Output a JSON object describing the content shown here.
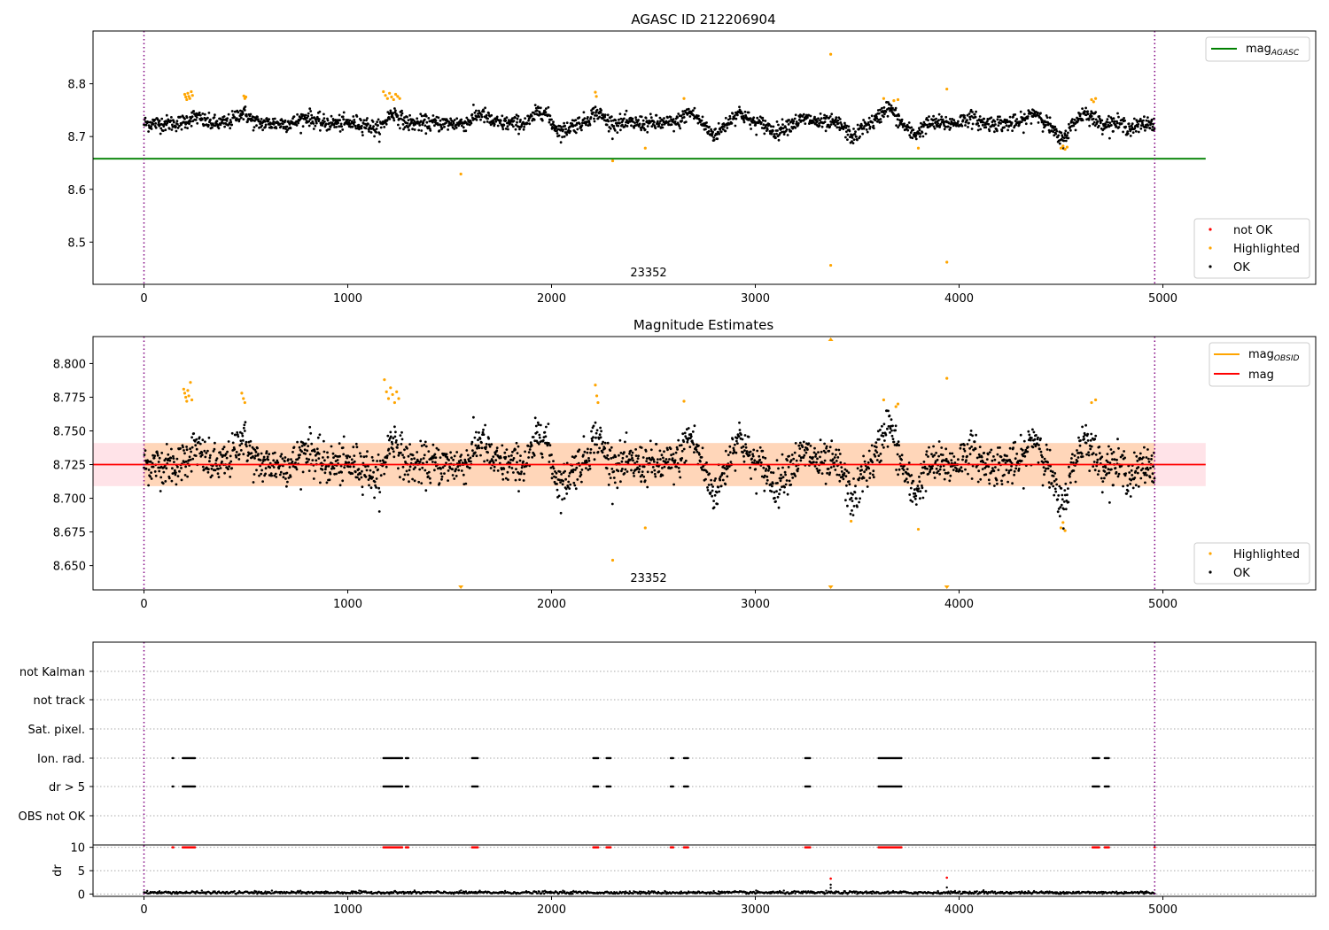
{
  "chart_data": [
    {
      "type": "scatter",
      "title": "AGASC ID 212206904",
      "xlim": [
        -250,
        5750
      ],
      "ylim": [
        8.42,
        8.9
      ],
      "xticks": [
        0,
        1000,
        2000,
        3000,
        4000,
        5000
      ],
      "yticks": [
        8.5,
        8.6,
        8.7,
        8.8
      ],
      "obsid_label": "23352",
      "obsid_label_x": 2480,
      "vlines": [
        0,
        4960
      ],
      "mag_agasc": 8.658,
      "mag_agasc_xrange": [
        -250,
        5210
      ],
      "legend_top": {
        "position": "top-right",
        "entries": [
          {
            "name": "mag",
            "sub": "AGASC",
            "color": "#008000"
          }
        ]
      },
      "legend_bottom": {
        "position": "bottom-right",
        "entries": [
          {
            "name": "not OK",
            "color": "#ff0000"
          },
          {
            "name": "Highlighted",
            "color": "#ffa500"
          },
          {
            "name": "OK",
            "color": "#000000"
          }
        ]
      },
      "highlighted_points": [
        [
          200,
          8.78
        ],
        [
          205,
          8.775
        ],
        [
          210,
          8.77
        ],
        [
          215,
          8.782
        ],
        [
          220,
          8.776
        ],
        [
          225,
          8.772
        ],
        [
          232,
          8.785
        ],
        [
          238,
          8.778
        ],
        [
          490,
          8.777
        ],
        [
          495,
          8.772
        ],
        [
          500,
          8.775
        ],
        [
          1175,
          8.785
        ],
        [
          1185,
          8.778
        ],
        [
          1195,
          8.772
        ],
        [
          1205,
          8.782
        ],
        [
          1215,
          8.775
        ],
        [
          1225,
          8.77
        ],
        [
          1235,
          8.78
        ],
        [
          1245,
          8.776
        ],
        [
          1255,
          8.772
        ],
        [
          1555,
          8.629
        ],
        [
          2215,
          8.784
        ],
        [
          2220,
          8.776
        ],
        [
          2300,
          8.654
        ],
        [
          2460,
          8.678
        ],
        [
          2650,
          8.772
        ],
        [
          3370,
          8.856
        ],
        [
          3370,
          8.456
        ],
        [
          3630,
          8.772
        ],
        [
          3680,
          8.768
        ],
        [
          3700,
          8.77
        ],
        [
          3800,
          8.678
        ],
        [
          3940,
          8.79
        ],
        [
          3940,
          8.462
        ],
        [
          4500,
          8.678
        ],
        [
          4510,
          8.682
        ],
        [
          4520,
          8.676
        ],
        [
          4530,
          8.68
        ],
        [
          4650,
          8.77
        ],
        [
          4660,
          8.766
        ],
        [
          4670,
          8.772
        ]
      ]
    },
    {
      "type": "scatter",
      "title": "Magnitude Estimates",
      "xlim": [
        -250,
        5750
      ],
      "ylim": [
        8.632,
        8.82
      ],
      "xticks": [
        0,
        1000,
        2000,
        3000,
        4000,
        5000
      ],
      "yticks": [
        8.65,
        8.675,
        8.7,
        8.725,
        8.75,
        8.775,
        8.8
      ],
      "ytick_labels": [
        "8.650",
        "8.675",
        "8.700",
        "8.725",
        "8.750",
        "8.775",
        "8.800"
      ],
      "obsid_label": "23352",
      "obsid_label_x": 2480,
      "vlines": [
        0,
        4960
      ],
      "mag": 8.725,
      "mag_band": [
        8.709,
        8.741
      ],
      "mag_obsid": 8.725,
      "mag_xrange": [
        -250,
        5210
      ],
      "legend_top": {
        "position": "top-right",
        "entries": [
          {
            "name": "mag",
            "sub": "OBSID",
            "color": "#ffa500"
          },
          {
            "name": "mag",
            "color": "#ff0000"
          }
        ]
      },
      "legend_bottom": {
        "position": "bottom-right",
        "entries": [
          {
            "name": "Highlighted",
            "color": "#ffa500"
          },
          {
            "name": "OK",
            "color": "#000000"
          }
        ]
      },
      "highlighted_points": [
        [
          195,
          8.781
        ],
        [
          200,
          8.778
        ],
        [
          205,
          8.775
        ],
        [
          210,
          8.772
        ],
        [
          215,
          8.78
        ],
        [
          220,
          8.776
        ],
        [
          228,
          8.786
        ],
        [
          235,
          8.773
        ],
        [
          480,
          8.778
        ],
        [
          488,
          8.774
        ],
        [
          495,
          8.771
        ],
        [
          1180,
          8.788
        ],
        [
          1190,
          8.779
        ],
        [
          1200,
          8.774
        ],
        [
          1210,
          8.782
        ],
        [
          1220,
          8.777
        ],
        [
          1230,
          8.771
        ],
        [
          1240,
          8.779
        ],
        [
          1250,
          8.774
        ],
        [
          2215,
          8.784
        ],
        [
          2222,
          8.776
        ],
        [
          2228,
          8.771
        ],
        [
          2300,
          8.654
        ],
        [
          2460,
          8.678
        ],
        [
          2650,
          8.772
        ],
        [
          3630,
          8.773
        ],
        [
          3690,
          8.768
        ],
        [
          3700,
          8.77
        ],
        [
          3800,
          8.677
        ],
        [
          3940,
          8.789
        ],
        [
          3470,
          8.683
        ],
        [
          4500,
          8.678
        ],
        [
          4510,
          8.682
        ],
        [
          4520,
          8.676
        ],
        [
          4650,
          8.771
        ],
        [
          4670,
          8.773
        ]
      ],
      "offscale_up": [
        3370
      ],
      "offscale_down": [
        1555,
        3370,
        3940
      ]
    },
    {
      "type": "scatter",
      "title": "",
      "xlim": [
        -250,
        5750
      ],
      "xticks": [
        0,
        1000,
        2000,
        3000,
        4000,
        5000
      ],
      "vlines": [
        0,
        4960
      ],
      "flag_labels": [
        "not Kalman",
        "not track",
        "Sat. pixel.",
        "Ion. rad.",
        "dr > 5",
        "OBS not OK"
      ],
      "flag_rows": {
        "Ion. rad.": [
          [
            140,
            145
          ],
          [
            190,
            250
          ],
          [
            1175,
            1270
          ],
          [
            1285,
            1300
          ],
          [
            1610,
            1640
          ],
          [
            2205,
            2230
          ],
          [
            2270,
            2290
          ],
          [
            2585,
            2600
          ],
          [
            2650,
            2670
          ],
          [
            3245,
            3270
          ],
          [
            3605,
            3720
          ],
          [
            4655,
            4690
          ],
          [
            4715,
            4735
          ]
        ],
        "dr > 5": [
          [
            140,
            145
          ],
          [
            190,
            250
          ],
          [
            1175,
            1270
          ],
          [
            1285,
            1300
          ],
          [
            1610,
            1640
          ],
          [
            2205,
            2230
          ],
          [
            2270,
            2290
          ],
          [
            2585,
            2600
          ],
          [
            2650,
            2670
          ],
          [
            3245,
            3270
          ],
          [
            3605,
            3720
          ],
          [
            4655,
            4690
          ],
          [
            4715,
            4735
          ]
        ]
      },
      "dr_ylabel": "dr",
      "dr_ylim": [
        -0.5,
        10.5
      ],
      "dr_yticks": [
        0,
        5,
        10
      ],
      "dr_capped": [
        [
          140,
          145
        ],
        [
          190,
          250
        ],
        [
          1175,
          1270
        ],
        [
          1285,
          1300
        ],
        [
          1610,
          1640
        ],
        [
          2205,
          2230
        ],
        [
          2270,
          2290
        ],
        [
          2585,
          2600
        ],
        [
          2650,
          2670
        ],
        [
          3245,
          3270
        ],
        [
          3605,
          3720
        ],
        [
          4655,
          4690
        ],
        [
          4715,
          4735
        ],
        [
          4960,
          4962
        ]
      ],
      "dr_red_points": [
        [
          3370,
          3.3
        ],
        [
          3940,
          3.5
        ]
      ],
      "dr_black_points": [
        [
          3370,
          2.0
        ],
        [
          3370,
          1.3
        ],
        [
          3940,
          1.4
        ],
        [
          4120,
          0.8
        ]
      ]
    }
  ]
}
